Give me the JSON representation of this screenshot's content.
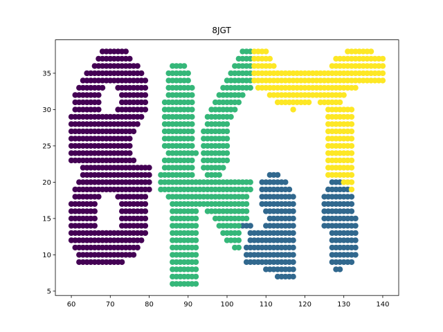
{
  "chart_data": {
    "type": "scatter",
    "title": "8JGT",
    "xlabel": "",
    "ylabel": "",
    "xlim": [
      55.9,
      144.1
    ],
    "ylim": [
      4.4,
      39.6
    ],
    "xticks": [
      60,
      70,
      80,
      90,
      100,
      110,
      120,
      130,
      140
    ],
    "yticks": [
      5,
      10,
      15,
      20,
      25,
      30,
      35
    ],
    "grid": false,
    "legend": false,
    "series": [
      {
        "color": "#440154",
        "rows": [
          {
            "y": 38,
            "x": [
              [
                68,
                74
              ]
            ]
          },
          {
            "y": 37,
            "x": [
              [
                67,
                75
              ]
            ]
          },
          {
            "y": 36,
            "x": [
              [
                66,
                77
              ]
            ]
          },
          {
            "y": 35,
            "x": [
              [
                64,
                78
              ]
            ]
          },
          {
            "y": 34,
            "x": [
              [
                63,
                79
              ]
            ]
          },
          {
            "y": 33,
            "x": [
              [
                62,
                68
              ],
              [
                72,
                79
              ]
            ]
          },
          {
            "y": 32,
            "x": [
              [
                61,
                67
              ],
              [
                73,
                79
              ]
            ]
          },
          {
            "y": 31,
            "x": [
              [
                61,
                67
              ],
              [
                73,
                79
              ]
            ]
          },
          {
            "y": 30,
            "x": [
              [
                61,
                67
              ],
              [
                72,
                79
              ]
            ]
          },
          {
            "y": 29,
            "x": [
              [
                60,
                78
              ]
            ]
          },
          {
            "y": 28,
            "x": [
              [
                60,
                77
              ]
            ]
          },
          {
            "y": 27,
            "x": [
              [
                60,
                76
              ]
            ]
          },
          {
            "y": 26,
            "x": [
              [
                60,
                75
              ]
            ]
          },
          {
            "y": 25,
            "x": [
              [
                60,
                75
              ]
            ]
          },
          {
            "y": 24,
            "x": [
              [
                60,
                75
              ]
            ]
          },
          {
            "y": 23,
            "x": [
              [
                60,
                76
              ]
            ]
          },
          {
            "y": 22,
            "x": [
              [
                63,
                80
              ]
            ]
          },
          {
            "y": 21,
            "x": [
              [
                63,
                80
              ]
            ]
          },
          {
            "y": 20,
            "x": [
              [
                62,
                80
              ]
            ]
          },
          {
            "y": 19,
            "x": [
              [
                61,
                80
              ]
            ]
          },
          {
            "y": 18,
            "x": [
              [
                61,
                67
              ],
              [
                72,
                79
              ]
            ]
          },
          {
            "y": 17,
            "x": [
              [
                60,
                66
              ],
              [
                73,
                79
              ]
            ]
          },
          {
            "y": 16,
            "x": [
              [
                60,
                66
              ],
              [
                73,
                79
              ]
            ]
          },
          {
            "y": 15,
            "x": [
              [
                60,
                66
              ],
              [
                73,
                79
              ]
            ]
          },
          {
            "y": 14,
            "x": [
              [
                60,
                66
              ],
              [
                73,
                79
              ]
            ]
          },
          {
            "y": 13,
            "x": [
              [
                60,
                79
              ]
            ]
          },
          {
            "y": 12,
            "x": [
              [
                60,
                78
              ]
            ]
          },
          {
            "y": 11,
            "x": [
              [
                61,
                77
              ]
            ]
          },
          {
            "y": 10,
            "x": [
              [
                62,
                76
              ]
            ]
          },
          {
            "y": 9,
            "x": [
              [
                62,
                73
              ]
            ]
          }
        ]
      },
      {
        "color": "#31688e",
        "rows": [
          {
            "y": 21,
            "x": [
              [
                111,
                113
              ]
            ]
          },
          {
            "y": 20,
            "x": [
              [
                109,
                115
              ],
              [
                127,
                129
              ]
            ]
          },
          {
            "y": 19,
            "x": [
              [
                109,
                116
              ],
              [
                126,
                131
              ]
            ]
          },
          {
            "y": 18,
            "x": [
              [
                109,
                117
              ],
              [
                125,
                132
              ]
            ]
          },
          {
            "y": 17,
            "x": [
              [
                109,
                117
              ],
              [
                125,
                132
              ]
            ]
          },
          {
            "y": 16,
            "x": [
              [
                110,
                117
              ],
              [
                125,
                132
              ]
            ]
          },
          {
            "y": 15,
            "x": [
              [
                111,
                117
              ],
              [
                125,
                133
              ]
            ]
          },
          {
            "y": 14,
            "x": [
              [
                104,
                106
              ],
              [
                110,
                117
              ],
              [
                125,
                133
              ]
            ]
          },
          {
            "y": 13,
            "x": [
              [
                106,
                117
              ],
              [
                127,
                133
              ]
            ]
          },
          {
            "y": 12,
            "x": [
              [
                106,
                117
              ],
              [
                127,
                133
              ]
            ]
          },
          {
            "y": 11,
            "x": [
              [
                105,
                117
              ],
              [
                127,
                133
              ]
            ]
          },
          {
            "y": 10,
            "x": [
              [
                105,
                117
              ],
              [
                127,
                133
              ]
            ]
          },
          {
            "y": 9,
            "x": [
              [
                105,
                117
              ],
              [
                127,
                132
              ]
            ]
          },
          {
            "y": 8,
            "x": [
              [
                110,
                117
              ],
              [
                128,
                129
              ]
            ]
          },
          {
            "y": 7,
            "x": [
              [
                113,
                117
              ]
            ]
          }
        ]
      },
      {
        "color": "#35b779",
        "rows": [
          {
            "y": 38,
            "x": [
              [
                104,
                106
              ]
            ]
          },
          {
            "y": 37,
            "x": [
              [
                103,
                106
              ]
            ]
          },
          {
            "y": 36,
            "x": [
              [
                86,
                89
              ],
              [
                102,
                106
              ]
            ]
          },
          {
            "y": 35,
            "x": [
              [
                85,
                90
              ],
              [
                101,
                106
              ]
            ]
          },
          {
            "y": 34,
            "x": [
              [
                85,
                90
              ],
              [
                100,
                106
              ]
            ]
          },
          {
            "y": 33,
            "x": [
              [
                85,
                91
              ],
              [
                99,
                106
              ]
            ]
          },
          {
            "y": 32,
            "x": [
              [
                85,
                91
              ],
              [
                98,
                104
              ]
            ]
          },
          {
            "y": 31,
            "x": [
              [
                84,
                91
              ],
              [
                97,
                103
              ]
            ]
          },
          {
            "y": 30,
            "x": [
              [
                84,
                91
              ],
              [
                96,
                102
              ]
            ]
          },
          {
            "y": 29,
            "x": [
              [
                84,
                91
              ],
              [
                95,
                101
              ]
            ]
          },
          {
            "y": 28,
            "x": [
              [
                84,
                91
              ],
              [
                95,
                100
              ]
            ]
          },
          {
            "y": 27,
            "x": [
              [
                84,
                91
              ],
              [
                94,
                100
              ]
            ]
          },
          {
            "y": 26,
            "x": [
              [
                84,
                91
              ],
              [
                94,
                100
              ]
            ]
          },
          {
            "y": 25,
            "x": [
              [
                84,
                91
              ],
              [
                94,
                100
              ]
            ]
          },
          {
            "y": 24,
            "x": [
              [
                85,
                92
              ],
              [
                94,
                100
              ]
            ]
          },
          {
            "y": 23,
            "x": [
              [
                84,
                91
              ],
              [
                94,
                100
              ]
            ]
          },
          {
            "y": 22,
            "x": [
              [
                84,
                91
              ],
              [
                94,
                99
              ]
            ]
          },
          {
            "y": 21,
            "x": [
              [
                83,
                91
              ],
              [
                95,
                98
              ]
            ]
          },
          {
            "y": 20,
            "x": [
              [
                83,
                106
              ]
            ]
          },
          {
            "y": 19,
            "x": [
              [
                83,
                106
              ]
            ]
          },
          {
            "y": 18,
            "x": [
              [
                85,
                105
              ]
            ]
          },
          {
            "y": 17,
            "x": [
              [
                86,
                105
              ]
            ]
          },
          {
            "y": 16,
            "x": [
              [
                86,
                92
              ],
              [
                95,
                105
              ]
            ]
          },
          {
            "y": 15,
            "x": [
              [
                86,
                92
              ],
              [
                97,
                105
              ]
            ]
          },
          {
            "y": 14,
            "x": [
              [
                86,
                92
              ],
              [
                98,
                103
              ]
            ]
          },
          {
            "y": 13,
            "x": [
              [
                86,
                92
              ],
              [
                99,
                103
              ]
            ]
          },
          {
            "y": 12,
            "x": [
              [
                86,
                92
              ],
              [
                100,
                103
              ]
            ]
          },
          {
            "y": 11,
            "x": [
              [
                86,
                92
              ],
              [
                102,
                103
              ]
            ]
          },
          {
            "y": 10,
            "x": [
              [
                86,
                92
              ]
            ]
          },
          {
            "y": 9,
            "x": [
              [
                86,
                92
              ]
            ]
          },
          {
            "y": 8,
            "x": [
              [
                86,
                92
              ]
            ]
          },
          {
            "y": 7,
            "x": [
              [
                86,
                92
              ]
            ]
          },
          {
            "y": 6,
            "x": [
              [
                86,
                92
              ]
            ]
          }
        ]
      },
      {
        "color": "#fde725",
        "rows": [
          {
            "y": 38,
            "x": [
              [
                107,
                110
              ],
              [
                131,
                137
              ]
            ]
          },
          {
            "y": 37,
            "x": [
              [
                107,
                111
              ],
              [
                128,
                140
              ]
            ]
          },
          {
            "y": 36,
            "x": [
              [
                107,
                112
              ],
              [
                127,
                140
              ]
            ]
          },
          {
            "y": 35,
            "x": [
              [
                107,
                140
              ]
            ]
          },
          {
            "y": 34,
            "x": [
              [
                107,
                140
              ]
            ]
          },
          {
            "y": 33,
            "x": [
              [
                108,
                133
              ]
            ]
          },
          {
            "y": 32,
            "x": [
              [
                111,
                130
              ]
            ]
          },
          {
            "y": 31,
            "x": [
              [
                113,
                121
              ],
              [
                124,
                129
              ]
            ]
          },
          {
            "y": 30,
            "x": [
              [
                117,
                117
              ],
              [
                126,
                132
              ]
            ]
          },
          {
            "y": 29,
            "x": [
              [
                126,
                132
              ]
            ]
          },
          {
            "y": 28,
            "x": [
              [
                126,
                132
              ]
            ]
          },
          {
            "y": 27,
            "x": [
              [
                126,
                132
              ]
            ]
          },
          {
            "y": 26,
            "x": [
              [
                126,
                132
              ]
            ]
          },
          {
            "y": 25,
            "x": [
              [
                126,
                132
              ]
            ]
          },
          {
            "y": 24,
            "x": [
              [
                126,
                132
              ]
            ]
          },
          {
            "y": 23,
            "x": [
              [
                126,
                132
              ]
            ]
          },
          {
            "y": 22,
            "x": [
              [
                126,
                132
              ]
            ]
          },
          {
            "y": 21,
            "x": [
              [
                126,
                132
              ]
            ]
          },
          {
            "y": 20,
            "x": [
              [
                130,
                132
              ]
            ]
          },
          {
            "y": 19,
            "x": [
              [
                132,
                132
              ]
            ]
          }
        ]
      }
    ]
  }
}
